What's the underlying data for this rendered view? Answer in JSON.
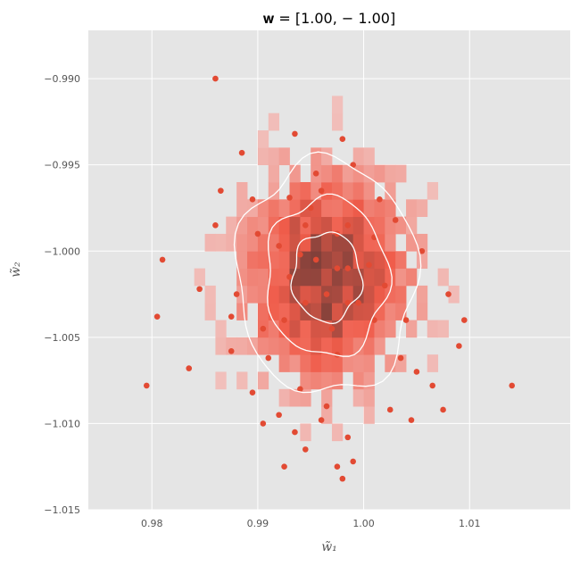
{
  "chart_data": {
    "type": "scatter",
    "title": "𝐰 = [1.00, − 1.00]",
    "xlabel": "w̃₁",
    "ylabel": "w̃₂",
    "xlim": [
      0.974,
      1.0195
    ],
    "ylim": [
      -1.015,
      -0.9872
    ],
    "xticks": [
      0.98,
      0.99,
      1.0,
      1.01
    ],
    "xtick_labels": [
      "0.98",
      "0.99",
      "1.00",
      "1.01"
    ],
    "yticks": [
      -0.99,
      -0.995,
      -1.0,
      -1.005,
      -1.01,
      -1.015
    ],
    "ytick_labels": [
      "−0.990",
      "−0.995",
      "−1.000",
      "−1.005",
      "−1.010",
      "−1.015"
    ],
    "grid": true,
    "style": "ggplot",
    "center": [
      0.9965,
      -1.0015
    ],
    "spread": [
      0.005,
      0.004
    ],
    "histogram_bin_size": 0.001,
    "contour_sigmas": [
      1.7,
      1.15,
      0.65
    ],
    "colors": {
      "background": "#e5e5e5",
      "grid": "#ffffff",
      "points": "#e24a33",
      "contour": "#ffffff",
      "hist_low": "#f1b1ab",
      "hist_mid": "#f05c4a",
      "hist_high": "#6b3b37"
    },
    "points": [
      [
        0.986,
        -0.99
      ],
      [
        0.998,
        -0.9935
      ],
      [
        0.9935,
        -0.9932
      ],
      [
        0.999,
        -0.995
      ],
      [
        0.9885,
        -0.9943
      ],
      [
        0.9955,
        -0.9955
      ],
      [
        0.996,
        -0.9965
      ],
      [
        0.9865,
        -0.9965
      ],
      [
        0.9895,
        -0.997
      ],
      [
        0.993,
        -0.9969
      ],
      [
        0.995,
        -0.9975
      ],
      [
        1.0015,
        -0.997
      ],
      [
        0.986,
        -0.9985
      ],
      [
        1.003,
        -0.9982
      ],
      [
        0.99,
        -0.999
      ],
      [
        0.9975,
        -0.999
      ],
      [
        0.992,
        -0.9997
      ],
      [
        1.0055,
        -1.0
      ],
      [
        0.981,
        -1.0005
      ],
      [
        0.9845,
        -1.0022
      ],
      [
        1.008,
        -1.0025
      ],
      [
        1.0095,
        -1.004
      ],
      [
        0.9995,
        -1.003
      ],
      [
        0.9985,
        -1.001
      ],
      [
        0.9875,
        -1.0038
      ],
      [
        0.997,
        -1.0045
      ],
      [
        0.9835,
        -1.0068
      ],
      [
        0.9875,
        -1.0058
      ],
      [
        0.9795,
        -1.0078
      ],
      [
        0.9805,
        -1.0038
      ],
      [
        1.014,
        -1.0078
      ],
      [
        1.005,
        -1.007
      ],
      [
        0.9895,
        -1.0082
      ],
      [
        0.994,
        -1.008
      ],
      [
        0.9965,
        -1.009
      ],
      [
        1.0025,
        -1.0092
      ],
      [
        0.9905,
        -1.01
      ],
      [
        1.0045,
        -1.0098
      ],
      [
        1.0075,
        -1.0092
      ],
      [
        0.992,
        -1.0095
      ],
      [
        0.996,
        -1.0098
      ],
      [
        0.9935,
        -1.0105
      ],
      [
        0.9985,
        -1.0108
      ],
      [
        0.9945,
        -1.0115
      ],
      [
        0.9925,
        -1.0125
      ],
      [
        0.9975,
        -1.0125
      ],
      [
        0.998,
        -1.0132
      ],
      [
        0.999,
        -1.0122
      ],
      [
        1.002,
        -1.002
      ],
      [
        1.0005,
        -1.0008
      ],
      [
        0.993,
        -1.0015
      ],
      [
        0.9945,
        -1.003
      ],
      [
        0.9955,
        -1.0005
      ],
      [
        0.9985,
        -1.003
      ],
      [
        0.9965,
        -1.0025
      ],
      [
        0.9975,
        -1.001
      ],
      [
        0.994,
        -1.0002
      ],
      [
        1.001,
        -1.004
      ],
      [
        0.9925,
        -1.004
      ],
      [
        1.0035,
        -1.0062
      ],
      [
        0.9905,
        -1.0045
      ],
      [
        0.988,
        -1.0025
      ],
      [
        0.9975,
        -1.006
      ],
      [
        1.0065,
        -1.0078
      ],
      [
        1.009,
        -1.0055
      ],
      [
        0.991,
        -1.0062
      ],
      [
        1.004,
        -1.004
      ],
      [
        0.9985,
        -0.9985
      ],
      [
        1.001,
        -0.9992
      ],
      [
        0.9945,
        -0.9985
      ]
    ]
  }
}
